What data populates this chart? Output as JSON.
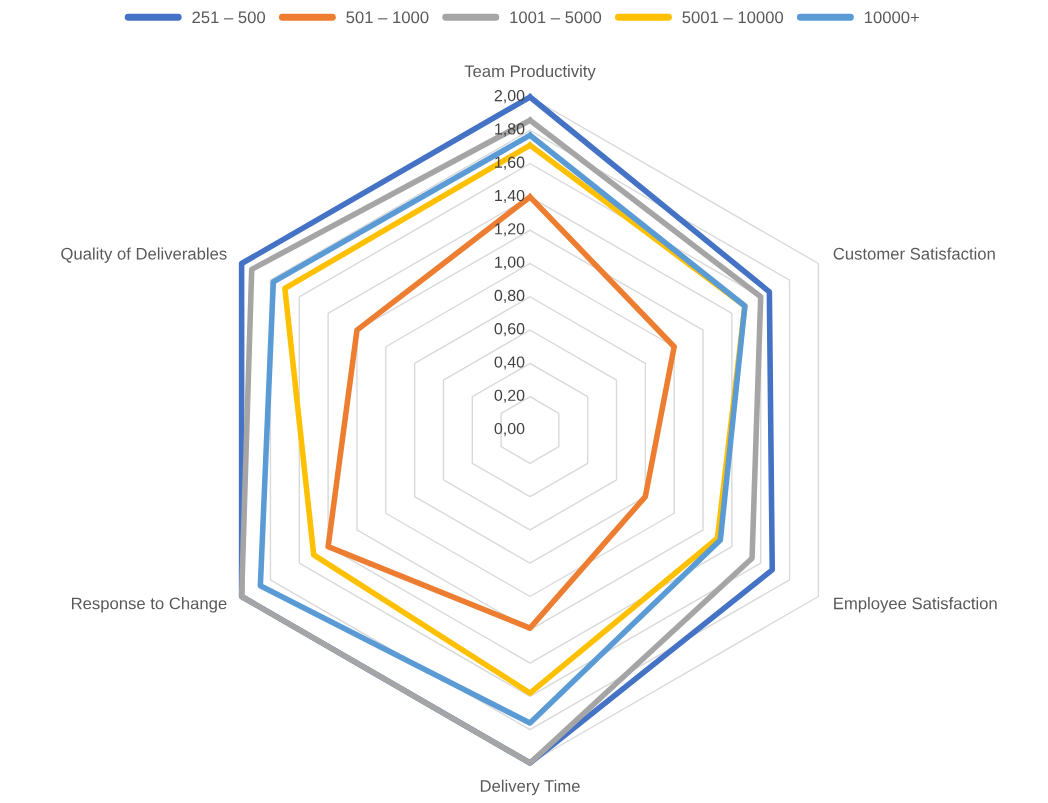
{
  "chart_data": {
    "type": "radar",
    "categories": [
      "Team Productivity",
      "Customer Satisfaction",
      "Employee Satisfaction",
      "Delivery Time",
      "Response to Change",
      "Quality of Deliverables"
    ],
    "ylim": [
      0,
      2
    ],
    "yticks": [
      {
        "value": 0,
        "label": "0,00"
      },
      {
        "value": 0.2,
        "label": "0,20"
      },
      {
        "value": 0.4,
        "label": "0,40"
      },
      {
        "value": 0.6,
        "label": "0,60"
      },
      {
        "value": 0.8,
        "label": "0,80"
      },
      {
        "value": 1.0,
        "label": "1,00"
      },
      {
        "value": 1.2,
        "label": "1,20"
      },
      {
        "value": 1.4,
        "label": "1,40"
      },
      {
        "value": 1.6,
        "label": "1,60"
      },
      {
        "value": 1.8,
        "label": "1,80"
      },
      {
        "value": 2.0,
        "label": "2,00"
      }
    ],
    "grid": true,
    "legend": "top",
    "marker": "none",
    "series": [
      {
        "name": "251 – 500",
        "color": "#4472c4",
        "values": [
          2.0,
          1.66,
          1.68,
          2.0,
          2.0,
          2.0
        ]
      },
      {
        "name": "501 – 1000",
        "color": "#ed7d31",
        "values": [
          1.4,
          1.0,
          0.8,
          1.19,
          1.4,
          1.2
        ]
      },
      {
        "name": "1001 – 5000",
        "color": "#a5a5a5",
        "values": [
          1.86,
          1.6,
          1.54,
          2.0,
          2.0,
          1.93
        ]
      },
      {
        "name": "5001 – 10000",
        "color": "#ffc000",
        "values": [
          1.71,
          1.49,
          1.3,
          1.58,
          1.5,
          1.7
        ]
      },
      {
        "name": "10000+",
        "color": "#5b9bd5",
        "values": [
          1.77,
          1.49,
          1.32,
          1.76,
          1.87,
          1.78
        ]
      }
    ]
  }
}
